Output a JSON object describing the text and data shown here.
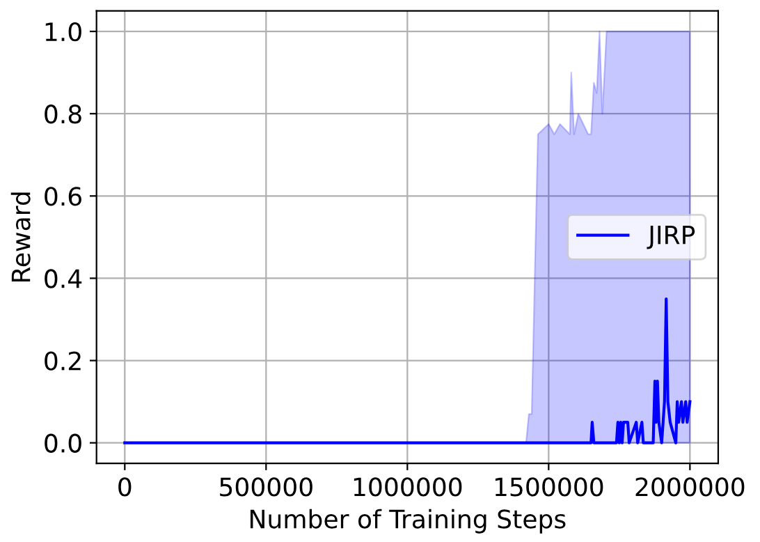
{
  "chart_data": {
    "type": "line",
    "xlabel": "Number of Training Steps",
    "ylabel": "Reward",
    "x": [
      0,
      1420000,
      1430000,
      1440000,
      1462000,
      1500000,
      1520000,
      1540000,
      1575000,
      1580000,
      1590000,
      1605000,
      1640000,
      1650000,
      1654000,
      1660000,
      1670000,
      1680000,
      1690000,
      1705000,
      1740000,
      1745000,
      1750000,
      1755000,
      1760000,
      1765000,
      1780000,
      1785000,
      1810000,
      1815000,
      1830000,
      1835000,
      1870000,
      1876000,
      1880000,
      1885000,
      1890000,
      1900000,
      1910000,
      1916000,
      1922000,
      1930000,
      1950000,
      1955000,
      1960000,
      1970000,
      1975000,
      1985000,
      1990000,
      2000000
    ],
    "series": [
      {
        "name": "JIRP",
        "color": "#0000ff",
        "values": [
          0,
          0,
          0,
          0,
          0,
          0,
          0,
          0,
          0,
          0,
          0,
          0,
          0,
          0,
          0.05,
          0,
          0,
          0,
          0,
          0,
          0,
          0.05,
          0,
          0.05,
          0,
          0.05,
          0.05,
          0,
          0.05,
          0,
          0.05,
          0,
          0,
          0.15,
          0.05,
          0.15,
          0.05,
          0,
          0.1,
          0.35,
          0.1,
          0.05,
          0,
          0.1,
          0.05,
          0.1,
          0.05,
          0.1,
          0.05,
          0.1
        ],
        "lower": [
          0,
          0,
          0,
          0,
          0,
          0,
          0,
          0,
          0,
          0,
          0,
          0,
          0,
          0,
          0,
          0,
          0,
          0,
          0,
          0,
          0,
          0,
          0,
          0,
          0,
          0,
          0,
          0,
          0,
          0,
          0,
          0,
          0,
          0,
          0,
          0,
          0,
          0,
          0,
          0,
          0,
          0,
          0,
          0,
          0,
          0,
          0,
          0,
          0,
          0
        ],
        "upper": [
          0,
          0,
          0.07,
          0.07,
          0.75,
          0.775,
          0.75,
          0.775,
          0.75,
          0.9,
          0.75,
          0.8,
          0.75,
          0.75,
          0.8,
          0.875,
          0.85,
          1.0,
          0.8,
          1.0,
          1.0,
          1.0,
          1.0,
          1.0,
          1.0,
          1.0,
          1.0,
          1.0,
          1.0,
          1.0,
          1.0,
          1.0,
          1.0,
          1.0,
          1.0,
          1.0,
          1.0,
          1.0,
          1.0,
          1.0,
          1.0,
          1.0,
          1.0,
          1.0,
          1.0,
          1.0,
          1.0,
          1.0,
          1.0,
          1.0
        ]
      }
    ],
    "xlim": [
      -100000,
      2100000
    ],
    "xticks": [
      0,
      500000,
      1000000,
      1500000,
      2000000
    ],
    "ylim": [
      -0.05,
      1.05
    ],
    "yticks": [
      {
        "value": 0,
        "label": "0.0"
      },
      {
        "value": 0.2,
        "label": "0.2"
      },
      {
        "value": 0.4,
        "label": "0.4"
      },
      {
        "value": 0.6,
        "label": "0.6"
      },
      {
        "value": 0.8,
        "label": "0.8"
      },
      {
        "value": 1.0,
        "label": "1.0"
      }
    ],
    "grid": true,
    "legend": "center right",
    "marker": "none",
    "line_style": "solid"
  }
}
